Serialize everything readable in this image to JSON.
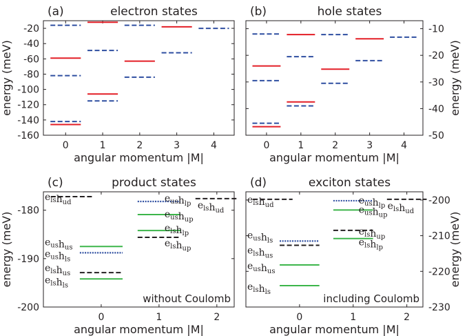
{
  "chart_data": [
    {
      "id": "a",
      "type": "line",
      "panel_label": "(a)",
      "title": "electron states",
      "xlabel": "angular momentum |M|",
      "ylabel": "energy (meV)",
      "y_axis_side": "left",
      "xlim": [
        -0.6,
        4.55
      ],
      "ylim": [
        -160,
        -10
      ],
      "xticks": [
        0,
        1,
        2,
        3,
        4
      ],
      "yticks": [
        -160,
        -140,
        -120,
        -100,
        -80,
        -60,
        -40,
        -20
      ],
      "colors": {
        "solid": "#e31e26",
        "dashed": "#2e4ea0"
      },
      "half_width": 0.41,
      "levels": [
        {
          "x": 0,
          "y": -16,
          "style": "dashed"
        },
        {
          "x": 0,
          "y": -59,
          "style": "solid"
        },
        {
          "x": 0,
          "y": -82,
          "style": "dashed"
        },
        {
          "x": 0,
          "y": -142,
          "style": "dashed"
        },
        {
          "x": 0,
          "y": -146,
          "style": "solid"
        },
        {
          "x": 1,
          "y": -12,
          "style": "solid"
        },
        {
          "x": 1,
          "y": -49,
          "style": "dashed"
        },
        {
          "x": 1,
          "y": -106,
          "style": "solid"
        },
        {
          "x": 1,
          "y": -115,
          "style": "dashed"
        },
        {
          "x": 2,
          "y": -16,
          "style": "dashed"
        },
        {
          "x": 2,
          "y": -63,
          "style": "solid"
        },
        {
          "x": 2,
          "y": -84,
          "style": "dashed"
        },
        {
          "x": 3,
          "y": -18,
          "style": "solid"
        },
        {
          "x": 3,
          "y": -52,
          "style": "dashed"
        },
        {
          "x": 4,
          "y": -20,
          "style": "dashed"
        }
      ]
    },
    {
      "id": "b",
      "type": "line",
      "panel_label": "(b)",
      "title": "hole states",
      "xlabel": "angular momentum |M|",
      "ylabel": "energy (meV)",
      "y_axis_side": "right",
      "xlim": [
        -0.6,
        4.55
      ],
      "ylim": [
        -50,
        -7
      ],
      "xticks": [
        0,
        1,
        2,
        3,
        4
      ],
      "yticks": [
        -50,
        -40,
        -30,
        -20,
        -10
      ],
      "colors": {
        "solid": "#e31e26",
        "dashed": "#2e4ea0"
      },
      "half_width": 0.41,
      "levels": [
        {
          "x": 0,
          "y": -12,
          "style": "dashed"
        },
        {
          "x": 0,
          "y": -24,
          "style": "solid"
        },
        {
          "x": 0,
          "y": -29.5,
          "style": "dashed"
        },
        {
          "x": 0,
          "y": -45.5,
          "style": "dashed"
        },
        {
          "x": 0,
          "y": -46.8,
          "style": "solid"
        },
        {
          "x": 1,
          "y": -12.2,
          "style": "solid"
        },
        {
          "x": 1,
          "y": -20.5,
          "style": "dashed"
        },
        {
          "x": 1,
          "y": -37.5,
          "style": "solid"
        },
        {
          "x": 1,
          "y": -39,
          "style": "dashed"
        },
        {
          "x": 2,
          "y": -12.2,
          "style": "dashed"
        },
        {
          "x": 2,
          "y": -25.2,
          "style": "solid"
        },
        {
          "x": 2,
          "y": -30.5,
          "style": "dashed"
        },
        {
          "x": 3,
          "y": -13.8,
          "style": "solid"
        },
        {
          "x": 3,
          "y": -22,
          "style": "dashed"
        },
        {
          "x": 4,
          "y": -13.2,
          "style": "dashed"
        }
      ]
    },
    {
      "id": "c",
      "type": "line",
      "panel_label": "(c)",
      "title": "product states",
      "annotation": "without Coulomb",
      "xlabel": "angular momentum |M|",
      "ylabel": "energy (meV)",
      "y_axis_side": "left",
      "xlim": [
        -1,
        2.3
      ],
      "ylim": [
        -200,
        -176.2
      ],
      "xticks": [
        0,
        1,
        2
      ],
      "yticks": [
        -200,
        -190,
        -180
      ],
      "colors": {
        "black": "#231f20",
        "green": "#3cb54a",
        "blue": "#2e4ea0"
      },
      "levels": [
        {
          "x": -0.5,
          "y": -177.2,
          "style": "dashed",
          "color": "black",
          "label": "e_ls h_ud"
        },
        {
          "x": 0,
          "y": -187.5,
          "style": "solid",
          "color": "green",
          "label": "e_us h_us"
        },
        {
          "x": 0,
          "y": -188.8,
          "style": "dotted",
          "color": "blue",
          "label": "e_us h_ls"
        },
        {
          "x": 0,
          "y": -192.9,
          "style": "dashed",
          "color": "black",
          "label": "e_ls h_us"
        },
        {
          "x": 0,
          "y": -194.2,
          "style": "solid",
          "color": "green",
          "label": "e_ls h_ls"
        },
        {
          "x": 1,
          "y": -178.2,
          "style": "dotted",
          "color": "blue",
          "label": "e_us h_lp"
        },
        {
          "x": 1,
          "y": -180.9,
          "style": "solid",
          "color": "green",
          "label": "e_us h_up"
        },
        {
          "x": 1,
          "y": -184.2,
          "style": "solid",
          "color": "green",
          "label": "e_ls h_lp"
        },
        {
          "x": 1,
          "y": -185.6,
          "style": "dashed",
          "color": "black",
          "label": "e_ls h_up"
        },
        {
          "x": 2,
          "y": -177.6,
          "style": "dashed",
          "color": "black",
          "label": "e_ls h_ud"
        }
      ]
    },
    {
      "id": "d",
      "type": "line",
      "panel_label": "(d)",
      "title": "exciton states",
      "annotation": "including Coulomb",
      "xlabel": "angular momentum |M|",
      "ylabel": "energy (meV)",
      "y_axis_side": "right",
      "xlim": [
        -1,
        2.3
      ],
      "ylim": [
        -230,
        -197.7
      ],
      "xticks": [
        0,
        1,
        2
      ],
      "yticks": [
        -230,
        -220,
        -210,
        -200
      ],
      "colors": {
        "black": "#231f20",
        "green": "#3cb54a",
        "blue": "#2e4ea0"
      },
      "levels": [
        {
          "x": -0.5,
          "y": -199.8,
          "style": "dashed",
          "color": "black",
          "label": "e_ls h_ud"
        },
        {
          "x": 0,
          "y": -211.5,
          "style": "dotted",
          "color": "blue",
          "label": "e_us h_ls"
        },
        {
          "x": 0,
          "y": -212.7,
          "style": "dashed",
          "color": "black",
          "label": "e_ls h_us"
        },
        {
          "x": 0,
          "y": -218.2,
          "style": "solid",
          "color": "green",
          "label": "e_us h_us"
        },
        {
          "x": 0,
          "y": -224,
          "style": "solid",
          "color": "green",
          "label": "e_ls h_ls"
        },
        {
          "x": 1,
          "y": -200.2,
          "style": "dotted",
          "color": "blue",
          "label": "e_us h_lp"
        },
        {
          "x": 1,
          "y": -202.8,
          "style": "solid",
          "color": "green",
          "label": "e_us h_up"
        },
        {
          "x": 1,
          "y": -208.5,
          "style": "dashed",
          "color": "black",
          "label": "e_ls h_up"
        },
        {
          "x": 1,
          "y": -210.8,
          "style": "solid",
          "color": "green",
          "label": "e_ls h_lp"
        },
        {
          "x": 2,
          "y": -199.8,
          "style": "dashed",
          "color": "black",
          "label": "e_ls h_ud"
        }
      ]
    }
  ]
}
